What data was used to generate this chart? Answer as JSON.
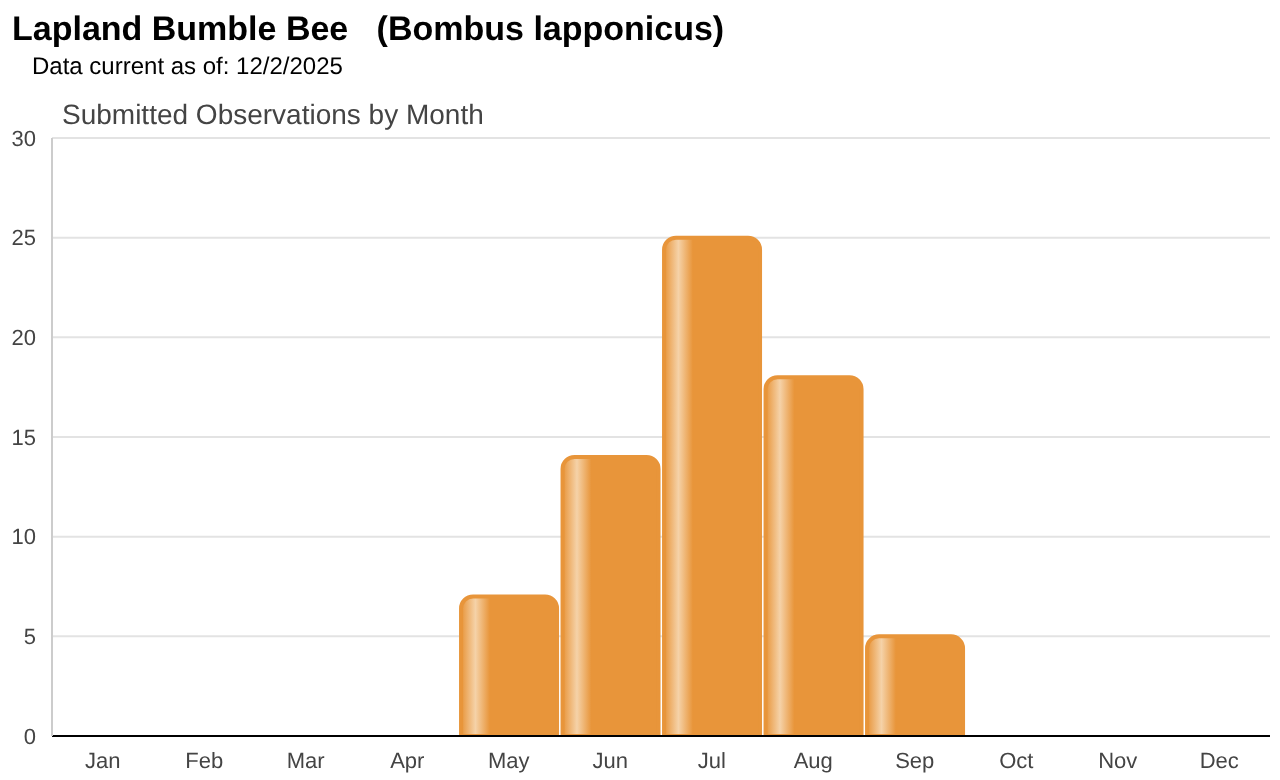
{
  "chart_data": {
    "type": "bar",
    "title": "Lapland Bumble Bee   (Bombus lapponicus)",
    "subtitle": "Data current as of: 12/2/2025",
    "annotations": [
      "Submitted Observations by Month"
    ],
    "categories": [
      "Jan",
      "Feb",
      "Mar",
      "Apr",
      "May",
      "Jun",
      "Jul",
      "Aug",
      "Sep",
      "Oct",
      "Nov",
      "Dec"
    ],
    "values": [
      0,
      0,
      0,
      0,
      7,
      14,
      25,
      18,
      5,
      0,
      0,
      0
    ],
    "color": "#e8953a",
    "ylim": [
      0,
      30
    ],
    "yticks": [
      0,
      5,
      10,
      15,
      20,
      25,
      30
    ],
    "grid": "y"
  }
}
